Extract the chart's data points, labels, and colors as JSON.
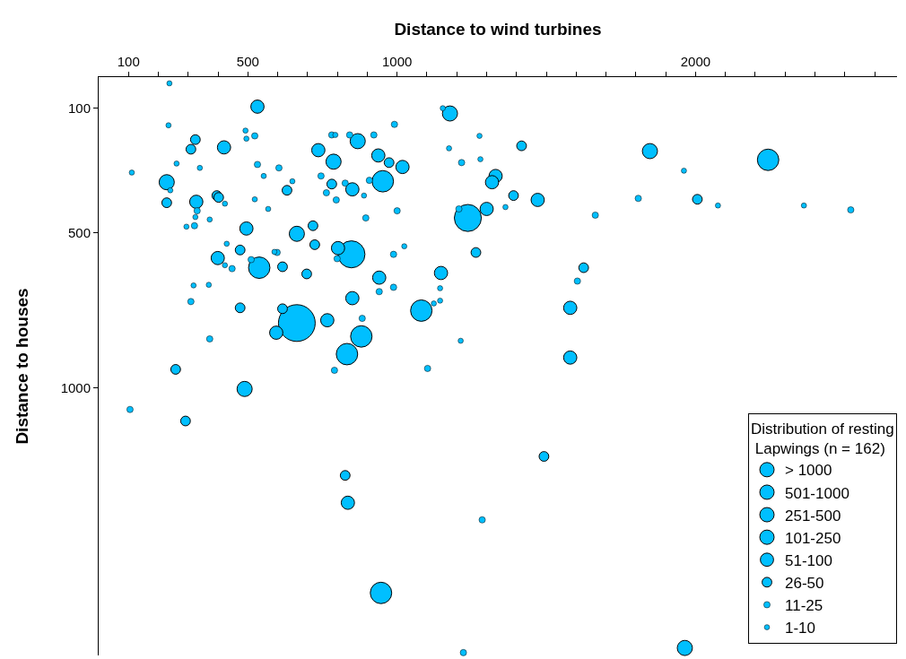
{
  "chart_data": {
    "type": "bubble",
    "xlabel": "Distance to wind turbines",
    "ylabel": "Distance to houses",
    "legend_title": "Distribution of resting\n Lapwings (n = 162)",
    "legend": "bottom right",
    "xlim": [
      0,
      2675
    ],
    "xticks": [
      {
        "value": 100,
        "label": "100"
      },
      {
        "value": 200,
        "label": null
      },
      {
        "value": 300,
        "label": null
      },
      {
        "value": 400,
        "label": null
      },
      {
        "value": 500,
        "label": "500"
      },
      {
        "value": 600,
        "label": null
      },
      {
        "value": 700,
        "label": null
      },
      {
        "value": 800,
        "label": null
      },
      {
        "value": 900,
        "label": null
      },
      {
        "value": 1000,
        "label": "1000"
      },
      {
        "value": 1100,
        "label": null
      },
      {
        "value": 1200,
        "label": null
      },
      {
        "value": 1300,
        "label": null
      },
      {
        "value": 1400,
        "label": null
      },
      {
        "value": 1500,
        "label": null
      },
      {
        "value": 1600,
        "label": null
      },
      {
        "value": 1700,
        "label": null
      },
      {
        "value": 1800,
        "label": null
      },
      {
        "value": 1900,
        "label": null
      },
      {
        "value": 2000,
        "label": "2000"
      },
      {
        "value": 2100,
        "label": null
      },
      {
        "value": 2200,
        "label": null
      },
      {
        "value": 2300,
        "label": null
      },
      {
        "value": 2400,
        "label": null
      },
      {
        "value": 2500,
        "label": null
      },
      {
        "value": 2600,
        "label": null
      }
    ],
    "ylim": [
      1860,
      0
    ],
    "yticks": [
      100,
      500,
      1000
    ],
    "series": [
      {
        "name": "> 1000",
        "color": "#00bfff",
        "x": [
          664
        ],
        "values": [
          791
        ],
        "sizes": [
          1
        ]
      },
      {
        "name": "501-1000",
        "color": "#00bfff",
        "x": [
          1237,
          847
        ],
        "values": [
          453,
          570
        ],
        "sizes": [
          0.54,
          0.54
        ]
      },
      {
        "name": "251-500",
        "color": "#00bfff",
        "x": [
          538,
          952,
          880,
          832,
          1081,
          2243,
          946
        ],
        "values": [
          613,
          335,
          834,
          891,
          751,
          266,
          1659
        ],
        "sizes": [
          0.34,
          0.34,
          0.34,
          0.34,
          0.34,
          0.34,
          0.34
        ]
      },
      {
        "name": "101-250",
        "color": "#00bfff",
        "x": [
          868,
          787,
          228,
          1964,
          489,
          664,
          1177,
          1847
        ],
        "values": [
          206,
          272,
          338,
          1836,
          1003,
          504,
          117,
          238
        ],
        "sizes": [
          0.17,
          0.17,
          0.17,
          0.17,
          0.17,
          0.17,
          0.17,
          0.17
        ]
      },
      {
        "name": "51-100",
        "color": "#00bfff",
        "x": [
          532,
          420,
          736,
          850,
          327,
          495,
          399,
          802,
          850,
          595,
          766,
          937,
          1018,
          1330,
          1318,
          1471,
          1300,
          1147,
          940,
          1580,
          1580,
          835
        ],
        "values": [
          95,
          226,
          235,
          361,
          401,
          487,
          582,
          550,
          711,
          822,
          782,
          252,
          289,
          318,
          338,
          395,
          424,
          630,
          645,
          742,
          902,
          1369
        ],
        "sizes": [
          0.13,
          0.13,
          0.13,
          0.13,
          0.13,
          0.13,
          0.13,
          0.13,
          0.13,
          0.13,
          0.13,
          0.13,
          0.13,
          0.13,
          0.13,
          0.13,
          0.13,
          0.13,
          0.13,
          0.13,
          0.13,
          0.13
        ]
      },
      {
        "name": "26-50",
        "color": "#00bfff",
        "x": [
          324,
          309,
          781,
          396,
          402,
          228,
          631,
          718,
          724,
          474,
          616,
          697,
          474,
          616,
          258,
          973,
          1417,
          1390,
          1264,
          1625,
          2006,
          291,
          826,
          1492
        ],
        "values": [
          201,
          232,
          344,
          381,
          387,
          404,
          364,
          478,
          539,
          556,
          610,
          633,
          742,
          745,
          940,
          275,
          221,
          381,
          564,
          613,
          393,
          1106,
          1281,
          1220
        ],
        "sizes": [
          0.07,
          0.07,
          0.07,
          0.07,
          0.07,
          0.07,
          0.07,
          0.07,
          0.07,
          0.07,
          0.07,
          0.07,
          0.07,
          0.07,
          0.07,
          0.07,
          0.07,
          0.07,
          0.07,
          0.07,
          0.07,
          0.07,
          0.07,
          0.07
        ]
      },
      {
        "name": "11-25",
        "color": "#00bfff",
        "x": [
          523,
          781,
          841,
          532,
          604,
          745,
          826,
          763,
          796,
          330,
          321,
          598,
          447,
          511,
          799,
          309,
          883,
          790,
          372,
          991,
          922,
          907,
          1216,
          1207,
          1664,
          1000,
          895,
          988,
          988,
          940,
          1604,
          1102,
          1808,
          2520,
          105,
          1285,
          1222
        ],
        "values": [
          189,
          186,
          186,
          281,
          292,
          318,
          341,
          372,
          395,
          430,
          478,
          564,
          616,
          587,
          584,
          722,
          776,
          943,
          842,
          152,
          186,
          332,
          275,
          424,
          444,
          430,
          453,
          570,
          676,
          690,
          656,
          937,
          390,
          427,
          1069,
          1424,
          1851
        ],
        "sizes": [
          0.03,
          0.03,
          0.03,
          0.03,
          0.03,
          0.03,
          0.03,
          0.03,
          0.03,
          0.03,
          0.03,
          0.03,
          0.03,
          0.03,
          0.03,
          0.03,
          0.03,
          0.03,
          0.03,
          0.03,
          0.03,
          0.03,
          0.03,
          0.03,
          0.03,
          0.03,
          0.03,
          0.03,
          0.03,
          0.03,
          0.03,
          0.03,
          0.03,
          0.03,
          0.03,
          0.03,
          0.03
        ]
      },
      {
        "name": "1-10",
        "color": "#00bfff",
        "x": [
          237,
          234,
          492,
          495,
          793,
          261,
          339,
          111,
          553,
          649,
          240,
          423,
          523,
          568,
          324,
          372,
          294,
          429,
          589,
          423,
          318,
          369,
          889,
          1153,
          1174,
          1276,
          1279,
          1363,
          1024,
          1144,
          1144,
          1123,
          1213,
          1961,
          2075,
          2363
        ],
        "values": [
          20,
          155,
          172,
          198,
          186,
          278,
          292,
          307,
          318,
          335,
          364,
          407,
          393,
          424,
          450,
          458,
          481,
          536,
          562,
          605,
          670,
          668,
          381,
          100,
          229,
          189,
          264,
          418,
          544,
          679,
          719,
          728,
          848,
          301,
          413,
          413
        ],
        "sizes": [
          0.02,
          0.02,
          0.02,
          0.02,
          0.02,
          0.02,
          0.02,
          0.02,
          0.02,
          0.02,
          0.02,
          0.02,
          0.02,
          0.02,
          0.02,
          0.02,
          0.02,
          0.02,
          0.02,
          0.02,
          0.02,
          0.02,
          0.02,
          0.02,
          0.02,
          0.02,
          0.02,
          0.02,
          0.02,
          0.02,
          0.02,
          0.02,
          0.02,
          0.02,
          0.02,
          0.02
        ]
      }
    ]
  }
}
